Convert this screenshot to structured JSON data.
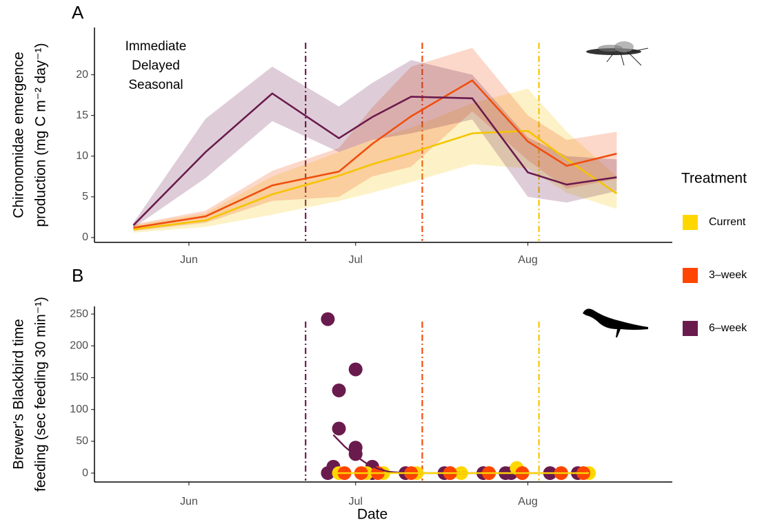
{
  "chart_data": [
    {
      "type": "line",
      "panel": "A",
      "ylabel": [
        "Chironomidae emergence",
        "production (mg C m⁻² day⁻¹)"
      ],
      "annotations": [
        "Immediate",
        "Delayed",
        "Seasonal"
      ],
      "legend_title": "Treatment",
      "x": [
        142,
        155,
        167,
        179,
        185,
        192,
        203,
        213,
        220,
        229
      ],
      "xlim": [
        135,
        239
      ],
      "xticks": [
        {
          "value": 152,
          "label": "Jun"
        },
        {
          "value": 182,
          "label": "Jul"
        },
        {
          "value": 213,
          "label": "Aug"
        }
      ],
      "ylim": [
        -0.6,
        25.8
      ],
      "yticks": [
        0,
        5,
        10,
        15,
        20
      ],
      "vlines": [
        {
          "x": 173,
          "color": "#6A1B4D"
        },
        {
          "x": 194,
          "color": "#F04E0E"
        },
        {
          "x": 215,
          "color": "#F5C400"
        }
      ],
      "series": [
        {
          "name": "Current",
          "color": "#F5C400",
          "legend_color": "#FFD700",
          "values": [
            1.0,
            2.1,
            5.3,
            7.6,
            9.0,
            10.4,
            12.8,
            13.1,
            9.6,
            5.4
          ],
          "lower": [
            0.6,
            1.3,
            2.8,
            4.5,
            5.5,
            6.8,
            9.0,
            8.5,
            5.5,
            3.5
          ],
          "upper": [
            1.5,
            3.0,
            7.5,
            10.5,
            12.0,
            13.5,
            16.5,
            18.3,
            13.0,
            7.5
          ]
        },
        {
          "name": "3–week",
          "color": "#F04E0E",
          "legend_color": "#FF4500",
          "values": [
            1.2,
            2.6,
            6.4,
            8.1,
            11.5,
            14.9,
            19.3,
            11.8,
            8.8,
            10.3
          ],
          "lower": [
            0.8,
            1.8,
            4.5,
            5.0,
            7.5,
            8.7,
            15.5,
            9.5,
            6.0,
            7.2
          ],
          "upper": [
            1.6,
            3.3,
            8.2,
            11.0,
            16.0,
            21.0,
            23.3,
            15.0,
            12.0,
            13.0
          ]
        },
        {
          "name": "6–week",
          "color": "#6A1B4D",
          "legend_color": "#6A1B4D",
          "values": [
            1.5,
            10.5,
            17.7,
            12.2,
            14.8,
            17.3,
            17.1,
            8.0,
            6.5,
            7.4
          ],
          "lower": [
            1.2,
            7.3,
            14.3,
            10.5,
            12.0,
            12.8,
            14.5,
            5.0,
            4.3,
            5.7
          ],
          "upper": [
            1.8,
            14.6,
            21.0,
            16.1,
            19.0,
            21.8,
            20.0,
            12.3,
            10.0,
            9.6
          ]
        }
      ]
    },
    {
      "type": "scatter",
      "panel": "B",
      "ylabel": [
        "Brewer's Blackbird time",
        "feeding (sec feeding 30 min⁻¹)"
      ],
      "xlabel": "Date",
      "xlim": [
        135,
        239
      ],
      "xticks": [
        {
          "value": 152,
          "label": "Jun"
        },
        {
          "value": 182,
          "label": "Jul"
        },
        {
          "value": 213,
          "label": "Aug"
        }
      ],
      "ylim": [
        -14,
        262
      ],
      "yticks": [
        0,
        50,
        100,
        150,
        200,
        250
      ],
      "vlines": [
        {
          "x": 173,
          "color": "#6A1B4D"
        },
        {
          "x": 194,
          "color": "#F04E0E"
        },
        {
          "x": 215,
          "color": "#F5C400"
        }
      ],
      "series": [
        {
          "color": "#6A1B4D",
          "x": [
            177,
            177,
            178,
            179,
            179,
            182,
            182,
            182,
            185,
            185,
            191,
            198,
            199,
            205,
            209,
            210,
            217,
            222
          ],
          "values": [
            242,
            0,
            10,
            130,
            70,
            163,
            40,
            30,
            10,
            0,
            0,
            0,
            0,
            0,
            0,
            0,
            0,
            0
          ],
          "fit_x": [
            178,
            180,
            182,
            184,
            186,
            188,
            191,
            223
          ],
          "fit_values": [
            60,
            42,
            27,
            15,
            7,
            2,
            0,
            0
          ]
        },
        {
          "color": "#FFD700",
          "x": [
            179,
            184,
            187,
            193,
            201,
            206,
            211,
            212,
            219,
            224
          ],
          "values": [
            0,
            0,
            0,
            0,
            0,
            0,
            8,
            0,
            0,
            0
          ],
          "fit_x": [
            178,
            224
          ],
          "fit_values": [
            0,
            0
          ]
        },
        {
          "color": "#FF4500",
          "x": [
            180,
            183,
            186,
            192,
            199,
            206,
            212,
            219,
            223
          ],
          "values": [
            0,
            0,
            0,
            0,
            0,
            0,
            0,
            0,
            0
          ]
        }
      ]
    }
  ]
}
